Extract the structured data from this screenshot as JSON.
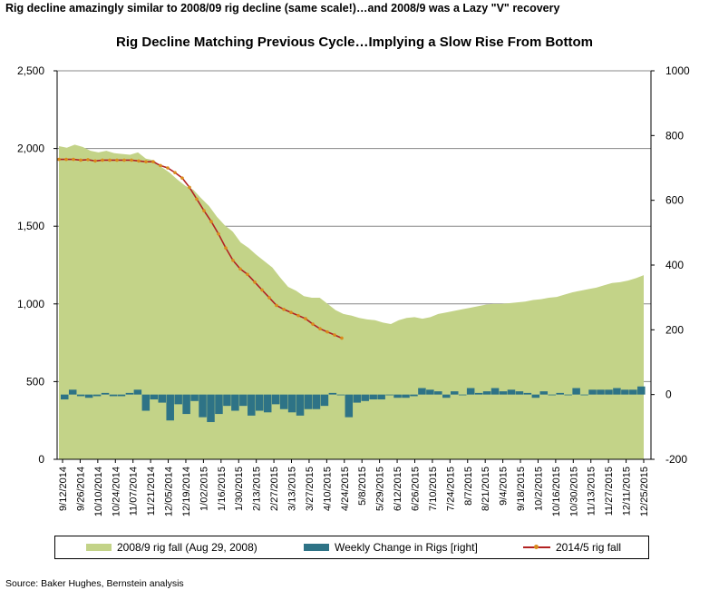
{
  "headline": "Rig decline amazingly similar to 2008/09 rig decline (same scale!)…and 2008/9 was a Lazy \"V\" recovery",
  "source": "Source: Baker Hughes, Bernstein analysis",
  "colors": {
    "area": "#c3d388",
    "bars": "#2e7386",
    "line": "#b22222",
    "marker": "#d98b1c",
    "grid": "#888888"
  },
  "chart_data": {
    "type": "area",
    "title": "Rig Decline Matching Previous Cycle…Implying a Slow Rise From Bottom",
    "left_axis": {
      "ylim": [
        0,
        2500
      ],
      "ticks": [
        "0",
        "500",
        "1,000",
        "1,500",
        "2,000",
        "2,500"
      ]
    },
    "right_axis": {
      "ylim": [
        -200,
        1000
      ],
      "ticks": [
        "-200",
        "0",
        "200",
        "400",
        "600",
        "800",
        "1000"
      ]
    },
    "x_tick_labels": [
      "9/12/2014",
      "9/26/2014",
      "10/10/2014",
      "10/24/2014",
      "11/07/2014",
      "11/21/2014",
      "12/05/2014",
      "12/19/2014",
      "1/02/2015",
      "1/16/2015",
      "1/30/2015",
      "2/13/2015",
      "2/27/2015",
      "3/13/2015",
      "3/27/2015",
      "4/10/2015",
      "4/24/2015",
      "5/8/2015",
      "5/29/2015",
      "6/12/2015",
      "6/26/2015",
      "7/10/2015",
      "7/24/2015",
      "8/7/2015",
      "8/21/2015",
      "9/4/2015",
      "9/18/2015",
      "10/2/2015",
      "10/16/2015",
      "10/30/2015",
      "11/13/2015",
      "11/27/2015",
      "12/11/2015",
      "12/25/2015"
    ],
    "grid": true,
    "legend_placement": "bottom",
    "series": [
      {
        "name": "2008/9 rig fall (Aug 29, 2008)",
        "type": "area",
        "axis": "left",
        "values": [
          2015,
          2005,
          2025,
          2010,
          1985,
          1975,
          1985,
          1970,
          1965,
          1960,
          1975,
          1935,
          1925,
          1880,
          1845,
          1800,
          1760,
          1735,
          1680,
          1630,
          1560,
          1505,
          1465,
          1395,
          1360,
          1315,
          1275,
          1235,
          1170,
          1110,
          1085,
          1050,
          1040,
          1040,
          1000,
          960,
          935,
          925,
          910,
          900,
          895,
          880,
          870,
          895,
          910,
          915,
          905,
          915,
          935,
          945,
          955,
          965,
          975,
          985,
          995,
          1000,
          1000,
          1005,
          1010,
          1015,
          1025,
          1030,
          1040,
          1045,
          1060,
          1075,
          1085,
          1095,
          1105,
          1120,
          1135,
          1140,
          1150,
          1165,
          1185
        ]
      },
      {
        "name": "Weekly Change in Rigs [right]",
        "type": "bar",
        "axis": "right",
        "values": [
          -15,
          15,
          -5,
          -10,
          -5,
          5,
          -5,
          -5,
          5,
          15,
          -50,
          -15,
          -25,
          -80,
          -30,
          -60,
          -20,
          -70,
          -85,
          -60,
          -35,
          -50,
          -35,
          -65,
          -50,
          -55,
          -30,
          -45,
          -55,
          -65,
          -45,
          -45,
          -35,
          5,
          0,
          -70,
          -25,
          -20,
          -15,
          -15,
          0,
          -10,
          -10,
          -5,
          20,
          15,
          10,
          -10,
          10,
          0,
          20,
          5,
          10,
          20,
          10,
          15,
          10,
          5,
          -10,
          10,
          0,
          5,
          0,
          20,
          0,
          15,
          15,
          15,
          20,
          15,
          15,
          25
        ]
      },
      {
        "name": "2014/5 rig fall",
        "type": "line",
        "axis": "left",
        "values": [
          1930,
          1930,
          1930,
          1925,
          1928,
          1920,
          1925,
          1925,
          1925,
          1925,
          1925,
          1920,
          1915,
          1915,
          1890,
          1875,
          1845,
          1810,
          1750,
          1675,
          1600,
          1530,
          1450,
          1360,
          1280,
          1225,
          1190,
          1140,
          1090,
          1040,
          990,
          965,
          945,
          925,
          905,
          870,
          840,
          820,
          800,
          780
        ]
      }
    ]
  }
}
